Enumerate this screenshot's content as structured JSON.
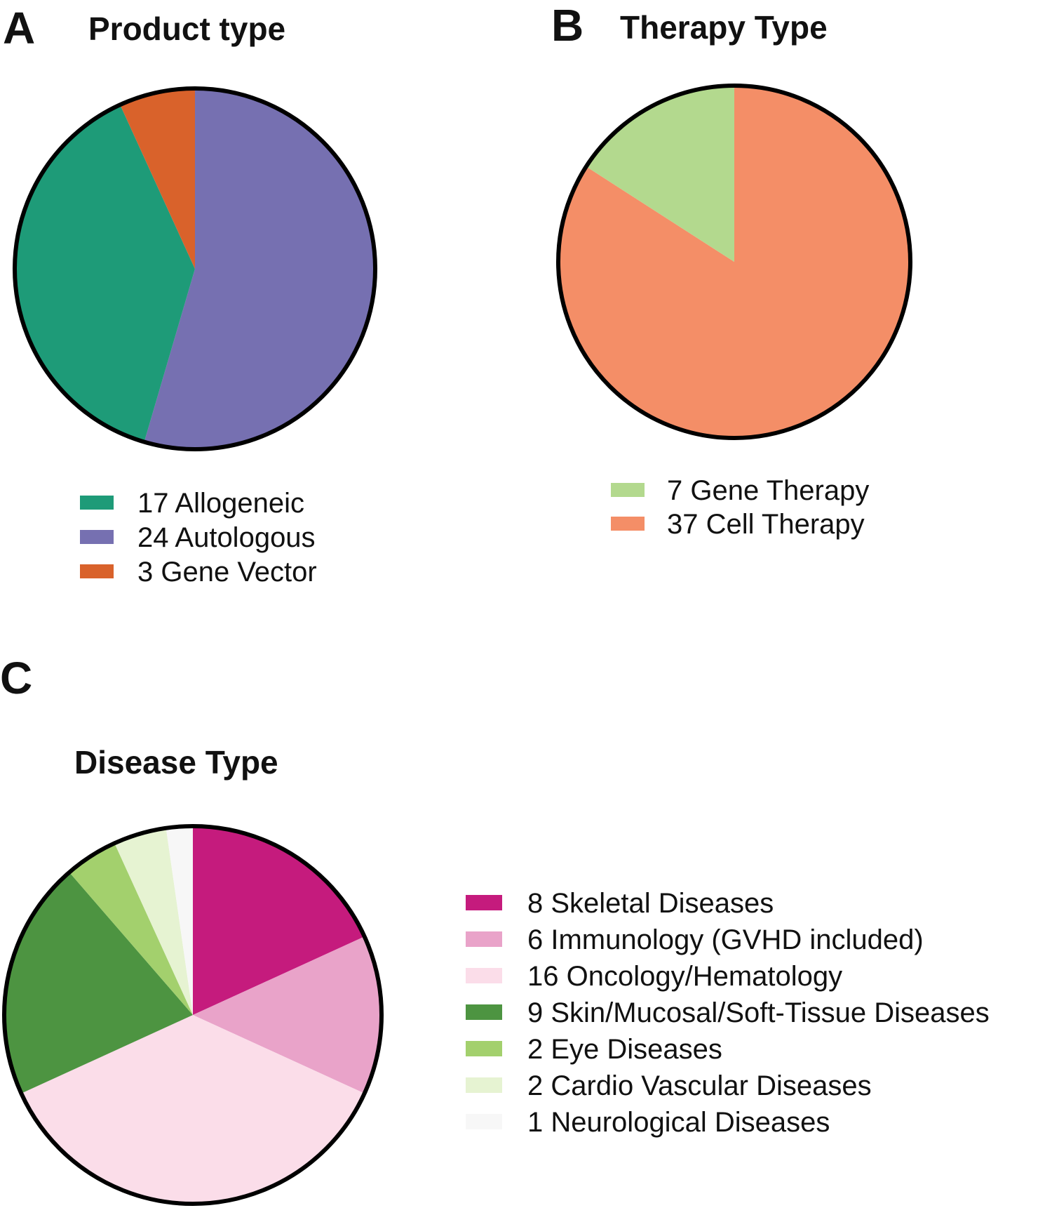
{
  "chart_data": [
    {
      "type": "pie",
      "panel": "A",
      "title": "Product type",
      "slices": [
        {
          "label": "17 Allogeneic",
          "value": 17,
          "color": "#1e9b78"
        },
        {
          "label": "24 Autologous",
          "value": 24,
          "color": "#7670b1"
        },
        {
          "label": "3 Gene Vector",
          "value": 3,
          "color": "#d9622b"
        }
      ],
      "slice_order_clockwise_from_top": [
        "24 Autologous",
        "17 Allogeneic",
        "3 Gene Vector"
      ]
    },
    {
      "type": "pie",
      "panel": "B",
      "title": "Therapy Type",
      "slices": [
        {
          "label": "7 Gene Therapy",
          "value": 7,
          "color": "#b3d98e"
        },
        {
          "label": "37 Cell Therapy",
          "value": 37,
          "color": "#f48e67"
        }
      ],
      "slice_order_clockwise_from_top": [
        "37 Cell Therapy",
        "7 Gene Therapy"
      ]
    },
    {
      "type": "pie",
      "panel": "C",
      "title": "Disease Type",
      "slices": [
        {
          "label": "8 Skeletal Diseases",
          "value": 8,
          "color": "#c51b7d"
        },
        {
          "label": "6 Immunology (GVHD included)",
          "value": 6,
          "color": "#e9a3c9"
        },
        {
          "label": "16 Oncology/Hematology",
          "value": 16,
          "color": "#fbdde9"
        },
        {
          "label": "9 Skin/Mucosal/Soft-Tissue Diseases",
          "value": 9,
          "color": "#4d9441"
        },
        {
          "label": "2 Eye Diseases",
          "value": 2,
          "color": "#a3d06d"
        },
        {
          "label": "2 Cardio Vascular Diseases",
          "value": 2,
          "color": "#e6f3d2"
        },
        {
          "label": "1 Neurological Diseases",
          "value": 1,
          "color": "#f7f7f7"
        }
      ],
      "slice_order_clockwise_from_top": [
        "8 Skeletal Diseases",
        "6 Immunology (GVHD included)",
        "16 Oncology/Hematology",
        "9 Skin/Mucosal/Soft-Tissue Diseases",
        "2 Eye Diseases",
        "2 Cardio Vascular Diseases",
        "1 Neurological Diseases"
      ]
    }
  ]
}
